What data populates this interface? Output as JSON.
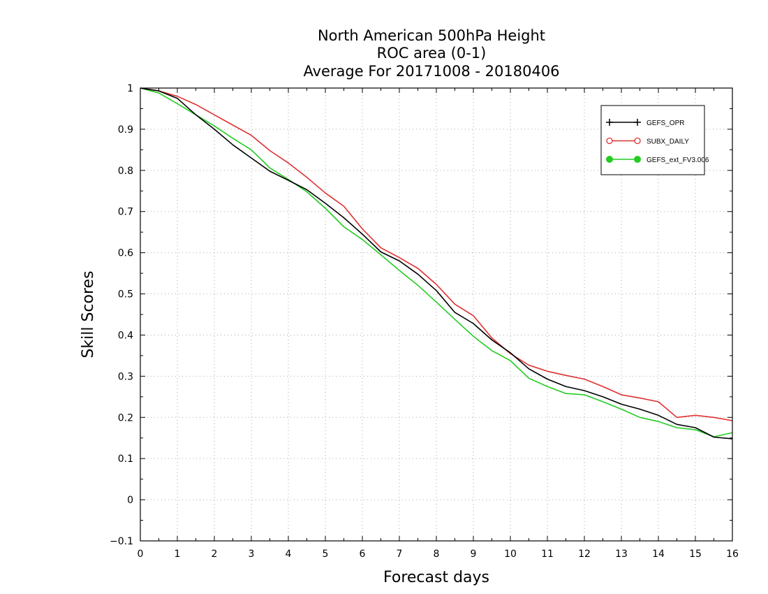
{
  "chart_data": {
    "type": "line",
    "title": [
      "North American 500hPa Height",
      "ROC area (0-1)",
      "Average For 20171008 - 20180406"
    ],
    "xlabel": "Forecast days",
    "ylabel": "Skill Scores",
    "xlim": [
      0,
      16
    ],
    "ylim": [
      -0.1,
      1
    ],
    "xticks": [
      0,
      1,
      2,
      3,
      4,
      5,
      6,
      7,
      8,
      9,
      10,
      11,
      12,
      13,
      14,
      15,
      16
    ],
    "yticks": [
      -0.1,
      0,
      0.1,
      0.2,
      0.3,
      0.4,
      0.5,
      0.6,
      0.7,
      0.8,
      0.9,
      1
    ],
    "ytick_labels": [
      "−0.1",
      "0",
      "0.1",
      "0.2",
      "0.3",
      "0.4",
      "0.5",
      "0.6",
      "0.7",
      "0.8",
      "0.9",
      "1"
    ],
    "grid": true,
    "legend_position": "top-right",
    "x": [
      0,
      0.5,
      1,
      1.5,
      2,
      2.5,
      3,
      3.5,
      4,
      4.5,
      5,
      5.5,
      6,
      6.5,
      7,
      7.5,
      8,
      8.5,
      9,
      9.5,
      10,
      10.5,
      11,
      11.5,
      12,
      12.5,
      13,
      13.5,
      14,
      14.5,
      15,
      15.5,
      16
    ],
    "series": [
      {
        "name": "GEFS_OPR",
        "color": "#000000",
        "marker": "plus",
        "values": [
          1.0,
          0.993,
          0.975,
          0.935,
          0.9,
          0.862,
          0.83,
          0.798,
          0.776,
          0.753,
          0.72,
          0.685,
          0.645,
          0.602,
          0.58,
          0.548,
          0.508,
          0.455,
          0.428,
          0.388,
          0.357,
          0.318,
          0.293,
          0.275,
          0.265,
          0.25,
          0.232,
          0.22,
          0.205,
          0.183,
          0.175,
          0.152,
          0.148
        ]
      },
      {
        "name": "SUBX_DAILY",
        "color": "#e03030",
        "marker": "open-circle",
        "values": [
          1.0,
          0.993,
          0.98,
          0.96,
          0.935,
          0.91,
          0.885,
          0.848,
          0.818,
          0.783,
          0.745,
          0.713,
          0.658,
          0.612,
          0.588,
          0.562,
          0.523,
          0.475,
          0.447,
          0.393,
          0.355,
          0.327,
          0.312,
          0.302,
          0.293,
          0.275,
          0.255,
          0.247,
          0.238,
          0.2,
          0.205,
          0.2,
          0.192
        ]
      },
      {
        "name": "GEFS_ext_FV3.006",
        "color": "#22cc22",
        "marker": "filled-circle",
        "values": [
          1.0,
          0.988,
          0.962,
          0.935,
          0.908,
          0.878,
          0.85,
          0.806,
          0.778,
          0.748,
          0.708,
          0.663,
          0.632,
          0.595,
          0.557,
          0.521,
          0.48,
          0.438,
          0.397,
          0.362,
          0.338,
          0.295,
          0.275,
          0.258,
          0.255,
          0.238,
          0.22,
          0.2,
          0.19,
          0.175,
          0.17,
          0.153,
          0.163
        ]
      }
    ]
  }
}
